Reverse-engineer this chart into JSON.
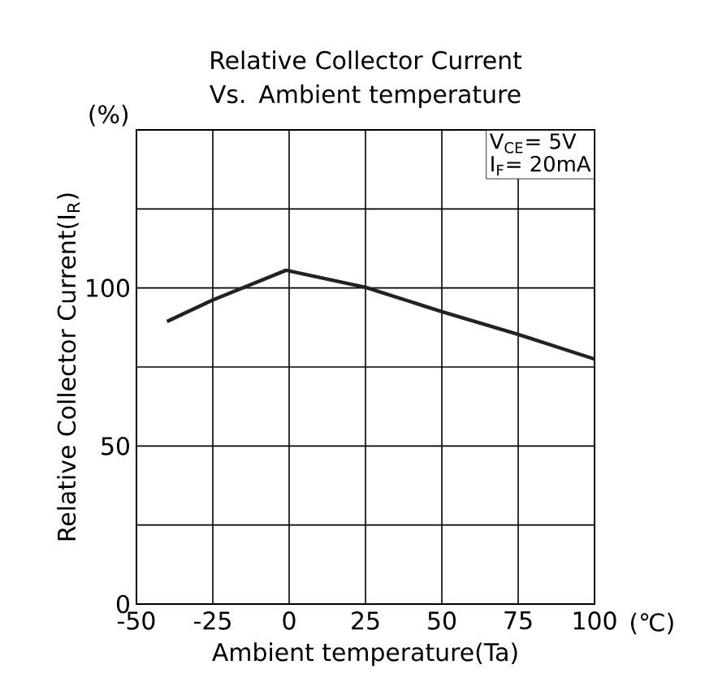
{
  "chart_data": {
    "type": "line",
    "title": "Relative Collector Current Vs. Ambient temperature",
    "xlabel": "Ambient temperature(Ta)",
    "ylabel": "Relative Collector Current(I$_{R}$)",
    "annotations": [
      "(%)",
      "(℃)",
      "V$_{CE}$= 5V",
      "I$_{F}$= 20mA"
    ],
    "x": [
      -40,
      -25,
      -1,
      25,
      50,
      75,
      100
    ],
    "series": [
      {
        "color": "#222222",
        "values": [
          89.4,
          96.2,
          105.6,
          100.2,
          92.5,
          85.3,
          77.5
        ]
      }
    ],
    "xlim": [
      -50,
      100
    ],
    "ylim": [
      0,
      150
    ],
    "xticks": [
      -50,
      -25,
      0,
      25,
      50,
      75,
      100
    ],
    "yticks": [
      0,
      {
        "value": 25,
        "label": null
      },
      50,
      {
        "value": 75,
        "label": null
      },
      100,
      {
        "value": 125,
        "label": null
      },
      {
        "value": 150,
        "label": null
      }
    ],
    "grid": true,
    "marker": "none",
    "line_style": "solid"
  }
}
